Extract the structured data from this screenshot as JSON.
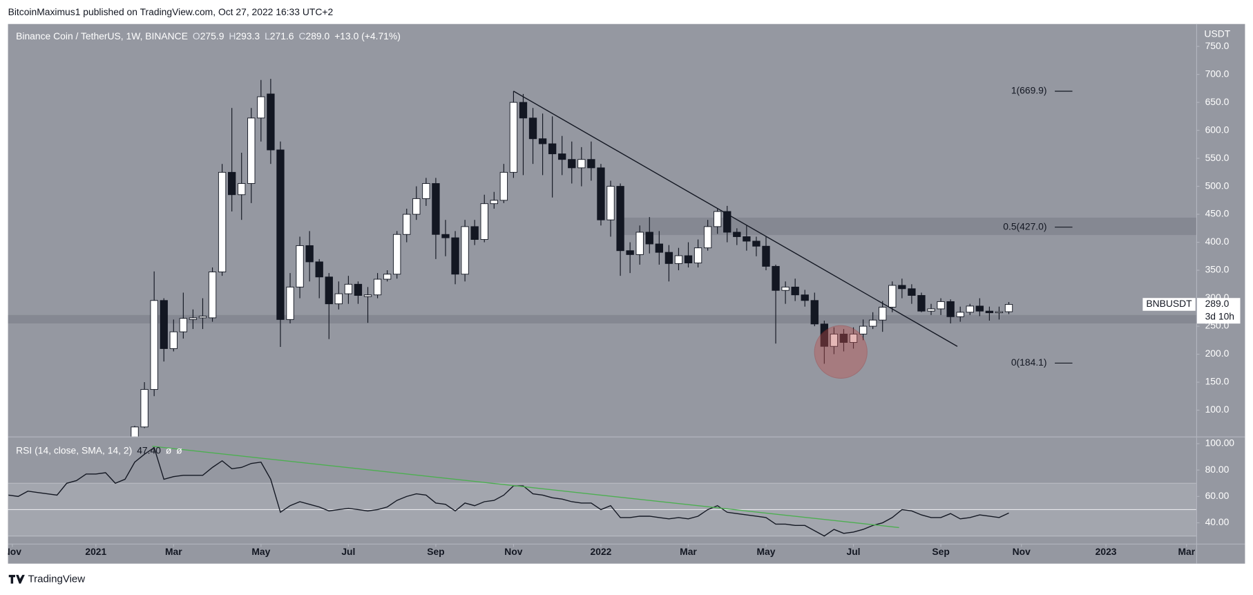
{
  "header": {
    "published": "BitcoinMaximus1 published on TradingView.com, Oct 27, 2022 16:33 UTC+2",
    "brand": "TradingView",
    "symbol": "Binance Coin / TetherUS, 1W, BINANCE",
    "ohlc": [
      {
        "key": "O",
        "text": "275.9"
      },
      {
        "key": "H",
        "text": "293.3"
      },
      {
        "key": "L",
        "text": "271.6"
      },
      {
        "key": "C",
        "text": "289.0"
      }
    ],
    "change": "+13.0 (+4.71%)",
    "currency": "USDT"
  },
  "chart_data": [
    {
      "type": "candlestick",
      "ylim": [
        52.9,
        790
      ],
      "xlim": [
        -9.05,
        113.3
      ],
      "yticks": [
        {
          "value": 100,
          "label": "100.0"
        },
        {
          "value": 150,
          "label": "150.0"
        },
        {
          "value": 200,
          "label": "200.0"
        },
        {
          "value": 250,
          "label": "250.0"
        },
        {
          "value": 300,
          "label": "300.0"
        },
        {
          "value": 350,
          "label": "350.0"
        },
        {
          "value": 400,
          "label": "400.0"
        },
        {
          "value": 450,
          "label": "450.0"
        },
        {
          "value": 500,
          "label": "500.0"
        },
        {
          "value": 550,
          "label": "550.0"
        },
        {
          "value": 600,
          "label": "600.0"
        },
        {
          "value": 650,
          "label": "650.0"
        },
        {
          "value": 700,
          "label": "700.0"
        },
        {
          "value": 750,
          "label": "750.0"
        }
      ],
      "xticks": [
        {
          "value": -8.6,
          "label": "Nov"
        },
        {
          "value": 0,
          "label": "2021"
        },
        {
          "value": 8,
          "label": "Mar"
        },
        {
          "value": 17,
          "label": "May"
        },
        {
          "value": 26,
          "label": "Jul"
        },
        {
          "value": 35,
          "label": "Sep"
        },
        {
          "value": 43,
          "label": "Nov"
        },
        {
          "value": 52,
          "label": "2022"
        },
        {
          "value": 61,
          "label": "Mar"
        },
        {
          "value": 69,
          "label": "May"
        },
        {
          "value": 78,
          "label": "Jul"
        },
        {
          "value": 87,
          "label": "Sep"
        },
        {
          "value": 95.3,
          "label": "Nov"
        },
        {
          "value": 104,
          "label": "2023"
        },
        {
          "value": 112.3,
          "label": "Mar"
        }
      ],
      "grid": false,
      "up_color": "#ffffff",
      "down_color": "#131722",
      "candles": {
        "x": [
          4,
          5,
          6,
          7,
          8,
          9,
          10,
          11,
          12,
          13,
          14,
          15,
          16,
          17,
          18,
          19,
          20,
          21,
          22,
          23,
          24,
          25,
          26,
          27,
          28,
          29,
          30,
          31,
          32,
          33,
          34,
          35,
          36,
          37,
          38,
          39,
          40,
          41,
          42,
          43,
          44,
          45,
          46,
          47,
          48,
          49,
          50,
          51,
          52,
          53,
          54,
          55,
          56,
          57,
          58,
          59,
          60,
          61,
          62,
          63,
          64,
          65,
          66,
          67,
          68,
          69,
          70,
          71,
          72,
          73,
          74,
          75,
          76,
          77,
          78,
          79,
          80,
          81,
          82,
          83,
          84,
          85,
          86,
          87,
          88,
          89,
          90,
          91,
          92,
          93,
          94
        ],
        "open": [
          50,
          70,
          137,
          296,
          210,
          240,
          262,
          265,
          265,
          347,
          525,
          485,
          505,
          622,
          665,
          565,
          262,
          320,
          394,
          365,
          338,
          290,
          308,
          325,
          303,
          306,
          334,
          343,
          414,
          450,
          478,
          505,
          414,
          408,
          343,
          428,
          405,
          469,
          475,
          525,
          650,
          622,
          585,
          576,
          558,
          548,
          533,
          548,
          533,
          440,
          500,
          385,
          378,
          418,
          397,
          382,
          362,
          376,
          363,
          390,
          428,
          455,
          418,
          410,
          402,
          393,
          357,
          314,
          320,
          306,
          296,
          254,
          214,
          236,
          221,
          236,
          250,
          261,
          284,
          323,
          317,
          305,
          277,
          281,
          294,
          267,
          275,
          286,
          277,
          274,
          275.9
        ],
        "high": [
          72,
          150,
          348,
          300,
          262,
          310,
          280,
          300,
          355,
          540,
          640,
          560,
          640,
          690,
          692,
          580,
          345,
          410,
          420,
          370,
          345,
          330,
          340,
          330,
          320,
          345,
          350,
          420,
          460,
          500,
          515,
          515,
          440,
          420,
          440,
          440,
          485,
          490,
          540,
          670,
          665,
          640,
          630,
          625,
          590,
          580,
          570,
          580,
          540,
          510,
          505,
          400,
          430,
          445,
          420,
          395,
          390,
          400,
          405,
          440,
          460,
          465,
          425,
          430,
          410,
          410,
          360,
          330,
          335,
          315,
          310,
          260,
          248,
          245,
          248,
          262,
          275,
          295,
          330,
          335,
          325,
          310,
          290,
          300,
          298,
          285,
          290,
          300,
          285,
          285,
          293.3
        ],
        "low": [
          48,
          68,
          125,
          187,
          205,
          228,
          245,
          245,
          258,
          340,
          455,
          440,
          470,
          580,
          540,
          213,
          255,
          300,
          330,
          300,
          227,
          280,
          290,
          290,
          256,
          300,
          330,
          335,
          400,
          440,
          465,
          370,
          375,
          325,
          330,
          395,
          400,
          460,
          470,
          515,
          520,
          540,
          520,
          480,
          520,
          505,
          500,
          510,
          430,
          410,
          340,
          345,
          360,
          380,
          360,
          330,
          350,
          355,
          355,
          385,
          415,
          400,
          395,
          385,
          375,
          350,
          219,
          290,
          295,
          285,
          250,
          183,
          200,
          205,
          210,
          225,
          245,
          240,
          275,
          300,
          290,
          275,
          270,
          270,
          255,
          258,
          270,
          268,
          260,
          262,
          271.6
        ],
        "close": [
          70,
          137,
          296,
          210,
          240,
          264,
          265,
          268,
          347,
          525,
          485,
          505,
          622,
          660,
          565,
          262,
          320,
          394,
          365,
          338,
          290,
          308,
          325,
          305,
          306,
          334,
          343,
          414,
          450,
          478,
          505,
          414,
          408,
          343,
          428,
          405,
          469,
          475,
          525,
          650,
          622,
          585,
          576,
          558,
          548,
          533,
          548,
          533,
          440,
          500,
          385,
          378,
          418,
          397,
          382,
          362,
          376,
          363,
          390,
          428,
          455,
          418,
          410,
          402,
          393,
          357,
          314,
          320,
          306,
          296,
          254,
          214,
          236,
          221,
          236,
          250,
          261,
          284,
          323,
          317,
          305,
          277,
          281,
          294,
          267,
          275,
          286,
          277,
          274,
          275.9,
          289
        ]
      },
      "last_price_label": "289.0",
      "symbol_tag": "BNBUSDT",
      "countdown": "3d 10h",
      "fib_levels": [
        {
          "label": "1(669.9)",
          "value": 669.9
        },
        {
          "label": "0.5(427.0)",
          "value": 427.0
        },
        {
          "label": "0(184.1)",
          "value": 184.1
        }
      ],
      "zones": [
        {
          "from": 413,
          "to": 444,
          "x_start": 54.2
        },
        {
          "from": 255,
          "to": 270,
          "x_start": -9.05
        }
      ],
      "trendline": {
        "x": [
          43,
          88.7
        ],
        "y": [
          670,
          214
        ]
      },
      "circle": {
        "x": 76.7,
        "y": 204,
        "r": 47
      }
    },
    {
      "type": "line",
      "title": "RSI (14, close, SMA, 14, 2)",
      "value_label": "47.40",
      "extra_labels": [
        "ø",
        "ø"
      ],
      "ylim": [
        24.2,
        104.8
      ],
      "yticks": [
        {
          "value": 100,
          "label": "100.00"
        },
        {
          "value": 80,
          "label": "80.00"
        },
        {
          "value": 60,
          "label": "60.00"
        },
        {
          "value": 40,
          "label": "40.00"
        }
      ],
      "bands": [
        30,
        70
      ],
      "midline": 50,
      "color": "#131722",
      "x": [
        -9,
        -8,
        -7,
        -6,
        -5,
        -4,
        -3,
        -2,
        -1,
        0,
        1,
        2,
        3,
        4,
        5,
        6,
        7,
        8,
        9,
        10,
        11,
        12,
        13,
        14,
        15,
        16,
        17,
        18,
        19,
        20,
        21,
        22,
        23,
        24,
        25,
        26,
        27,
        28,
        29,
        30,
        31,
        32,
        33,
        34,
        35,
        36,
        37,
        38,
        39,
        40,
        41,
        42,
        43,
        44,
        45,
        46,
        47,
        48,
        49,
        50,
        51,
        52,
        53,
        54,
        55,
        56,
        57,
        58,
        59,
        60,
        61,
        62,
        63,
        64,
        65,
        66,
        67,
        68,
        69,
        70,
        71,
        72,
        73,
        74,
        75,
        76,
        77,
        78,
        79,
        80,
        81,
        82,
        83,
        84,
        85,
        86,
        87,
        88,
        89,
        90,
        91,
        92,
        93,
        94
      ],
      "values": [
        61,
        60,
        64,
        63,
        62,
        61,
        70,
        72,
        77,
        77,
        78,
        70,
        73,
        86,
        92,
        97,
        73,
        75,
        76,
        76,
        76,
        82,
        87,
        81,
        82,
        85,
        86,
        73,
        48,
        53,
        56,
        54,
        52,
        49,
        50,
        51,
        50,
        49,
        50,
        52,
        57,
        60,
        62,
        61,
        55,
        54,
        49,
        55,
        53,
        56,
        57,
        61,
        68,
        68,
        62,
        61,
        59,
        58,
        56,
        55,
        55,
        50,
        53,
        44,
        44,
        45,
        45,
        44,
        43,
        44,
        43,
        45,
        50,
        53,
        48,
        47,
        46,
        45,
        44,
        39,
        39,
        38,
        38,
        34,
        30,
        35,
        32,
        33,
        35,
        38,
        40,
        44,
        50,
        49,
        46,
        44,
        44,
        47,
        43,
        44,
        46,
        45,
        44,
        47.4
      ],
      "trendline": {
        "x": [
          5.8,
          82.7
        ],
        "y": [
          98,
          36.4
        ],
        "color": "#4caf50"
      }
    }
  ]
}
